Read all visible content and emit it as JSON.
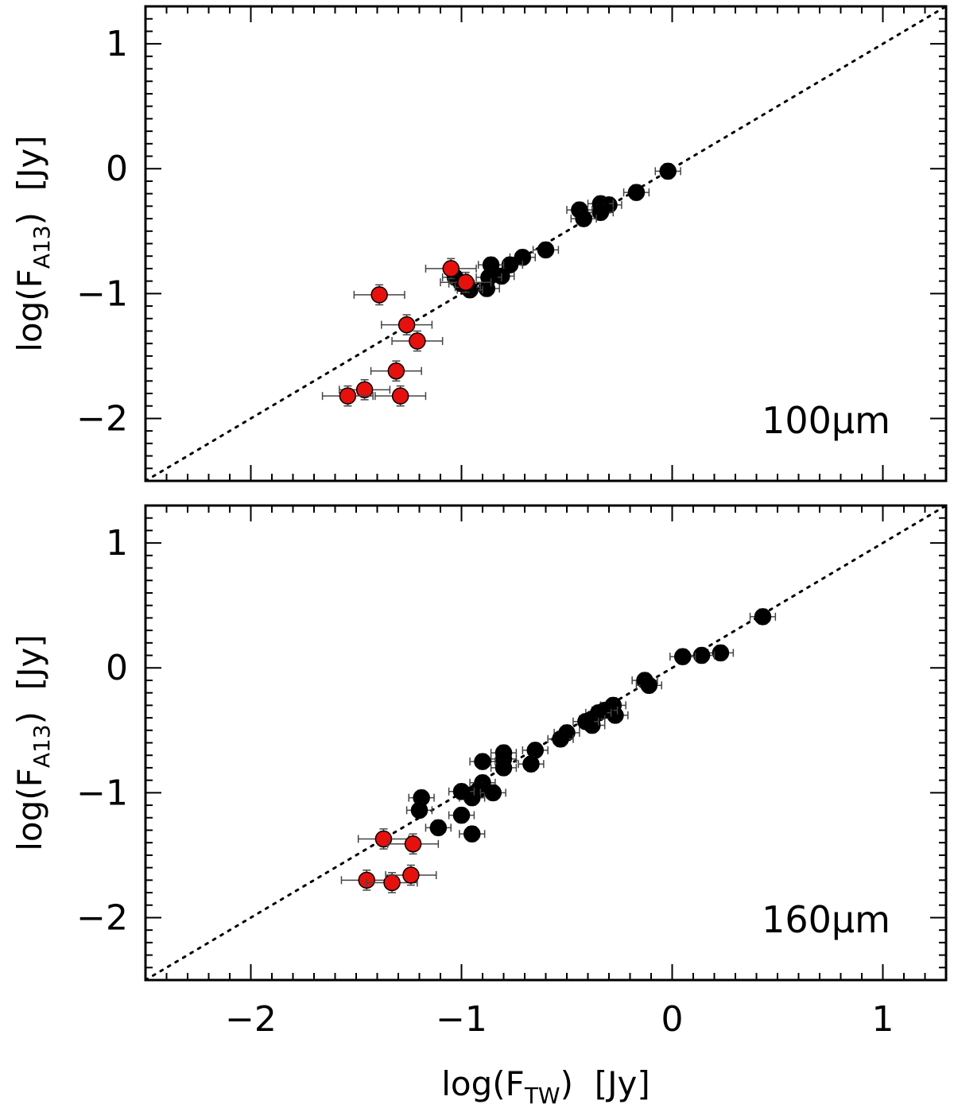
{
  "chart_data": [
    {
      "type": "scatter",
      "panel_label": "100µm",
      "xlabel": "log(F_TW) [Jy]",
      "ylabel": "log(F_A13) [Jy]",
      "xlim": [
        -2.5,
        1.3
      ],
      "ylim": [
        -2.5,
        1.3
      ],
      "x_ticks": [
        -2,
        -1,
        0,
        1
      ],
      "y_ticks": [
        -2,
        -1,
        0,
        1
      ],
      "reference_line": "y = x (dotted)",
      "series": [
        {
          "color": "#000000",
          "points": [
            [
              -0.02,
              -0.02
            ],
            [
              -0.17,
              -0.19
            ],
            [
              -0.3,
              -0.29
            ],
            [
              -0.34,
              -0.28
            ],
            [
              -0.34,
              -0.35
            ],
            [
              -0.44,
              -0.33
            ],
            [
              -0.42,
              -0.4
            ],
            [
              -0.6,
              -0.65
            ],
            [
              -0.71,
              -0.71
            ],
            [
              -0.77,
              -0.77
            ],
            [
              -0.81,
              -0.86
            ],
            [
              -0.86,
              -0.77
            ],
            [
              -0.87,
              -0.87
            ],
            [
              -0.88,
              -0.96
            ],
            [
              -0.96,
              -0.97
            ],
            [
              -1.03,
              -0.87
            ],
            [
              -1.0,
              -0.92
            ],
            [
              -0.97,
              -0.95
            ]
          ]
        },
        {
          "color": "#e8100c",
          "points": [
            [
              -1.05,
              -0.8
            ],
            [
              -0.98,
              -0.91
            ],
            [
              -1.39,
              -1.01
            ],
            [
              -1.26,
              -1.25
            ],
            [
              -1.21,
              -1.38
            ],
            [
              -1.31,
              -1.62
            ],
            [
              -1.46,
              -1.77
            ],
            [
              -1.54,
              -1.82
            ],
            [
              -1.29,
              -1.82
            ]
          ]
        }
      ]
    },
    {
      "type": "scatter",
      "panel_label": "160µm",
      "xlabel": "log(F_TW) [Jy]",
      "ylabel": "log(F_A13) [Jy]",
      "xlim": [
        -2.5,
        1.3
      ],
      "ylim": [
        -2.5,
        1.3
      ],
      "x_ticks": [
        -2,
        -1,
        0,
        1
      ],
      "y_ticks": [
        -2,
        -1,
        0,
        1
      ],
      "reference_line": "y = x (dotted)",
      "series": [
        {
          "color": "#000000",
          "points": [
            [
              0.43,
              0.41
            ],
            [
              0.23,
              0.12
            ],
            [
              0.14,
              0.1
            ],
            [
              0.05,
              0.09
            ],
            [
              -0.13,
              -0.1
            ],
            [
              -0.11,
              -0.14
            ],
            [
              -0.28,
              -0.3
            ],
            [
              -0.27,
              -0.38
            ],
            [
              -0.32,
              -0.34
            ],
            [
              -0.35,
              -0.36
            ],
            [
              -0.38,
              -0.41
            ],
            [
              -0.38,
              -0.46
            ],
            [
              -0.41,
              -0.43
            ],
            [
              -0.5,
              -0.52
            ],
            [
              -0.53,
              -0.57
            ],
            [
              -0.65,
              -0.66
            ],
            [
              -0.67,
              -0.77
            ],
            [
              -0.8,
              -0.68
            ],
            [
              -0.8,
              -0.73
            ],
            [
              -0.8,
              -0.8
            ],
            [
              -0.9,
              -0.75
            ],
            [
              -0.9,
              -0.92
            ],
            [
              -0.92,
              -0.98
            ],
            [
              -0.85,
              -1.0
            ],
            [
              -0.95,
              -1.04
            ],
            [
              -1.0,
              -0.99
            ],
            [
              -1.0,
              -1.18
            ],
            [
              -0.95,
              -1.33
            ],
            [
              -1.11,
              -1.28
            ],
            [
              -1.19,
              -1.04
            ],
            [
              -1.2,
              -1.14
            ]
          ]
        },
        {
          "color": "#e8100c",
          "points": [
            [
              -1.37,
              -1.37
            ],
            [
              -1.23,
              -1.41
            ],
            [
              -1.45,
              -1.7
            ],
            [
              -1.33,
              -1.72
            ],
            [
              -1.24,
              -1.66
            ]
          ]
        }
      ]
    }
  ]
}
